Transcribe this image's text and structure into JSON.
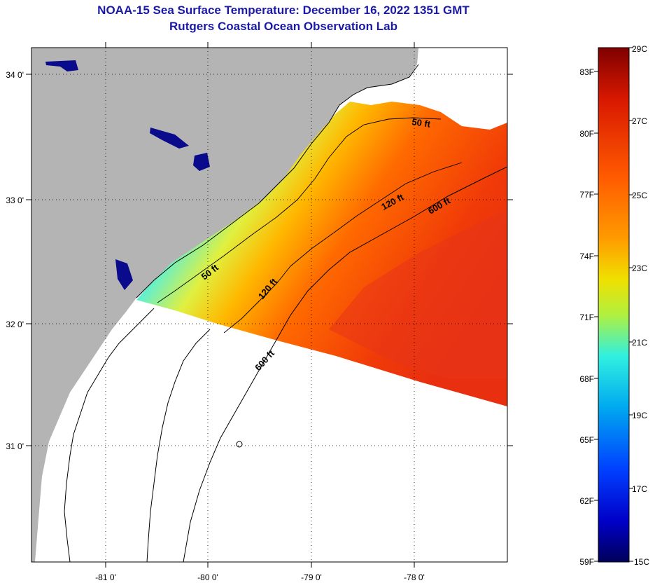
{
  "title": {
    "line1": "NOAA-15 Sea Surface Temperature:  December 16, 2022 1351 GMT",
    "line2": "Rutgers Coastal Ocean Observation Lab"
  },
  "map": {
    "lat_labels": [
      "34 0'",
      "33 0'",
      "32 0'",
      "31 0'"
    ],
    "lon_labels": [
      "-81 0'",
      "-80 0'",
      "-79 0'",
      "-78 0'"
    ],
    "contour_labels": [
      "50 ft",
      "120 ft",
      "600 ft",
      "50 ft",
      "120 ft",
      "600 ft"
    ],
    "colors": {
      "land": "#b4b4b4",
      "cloud": "#ffffff",
      "coast": "#000000"
    }
  },
  "colorbar": {
    "celsius": [
      "29C",
      "27C",
      "25C",
      "23C",
      "21C",
      "19C",
      "17C",
      "15C"
    ],
    "fahrenheit": [
      "83F",
      "80F",
      "77F",
      "74F",
      "71F",
      "68F",
      "65F",
      "62F",
      "59F"
    ],
    "stops": [
      "#7f0000",
      "#d81800",
      "#ff5a00",
      "#ff9a00",
      "#f0e000",
      "#b0f040",
      "#30f0e0",
      "#00a8f0",
      "#0040ff",
      "#0000c8",
      "#00005a"
    ]
  }
}
